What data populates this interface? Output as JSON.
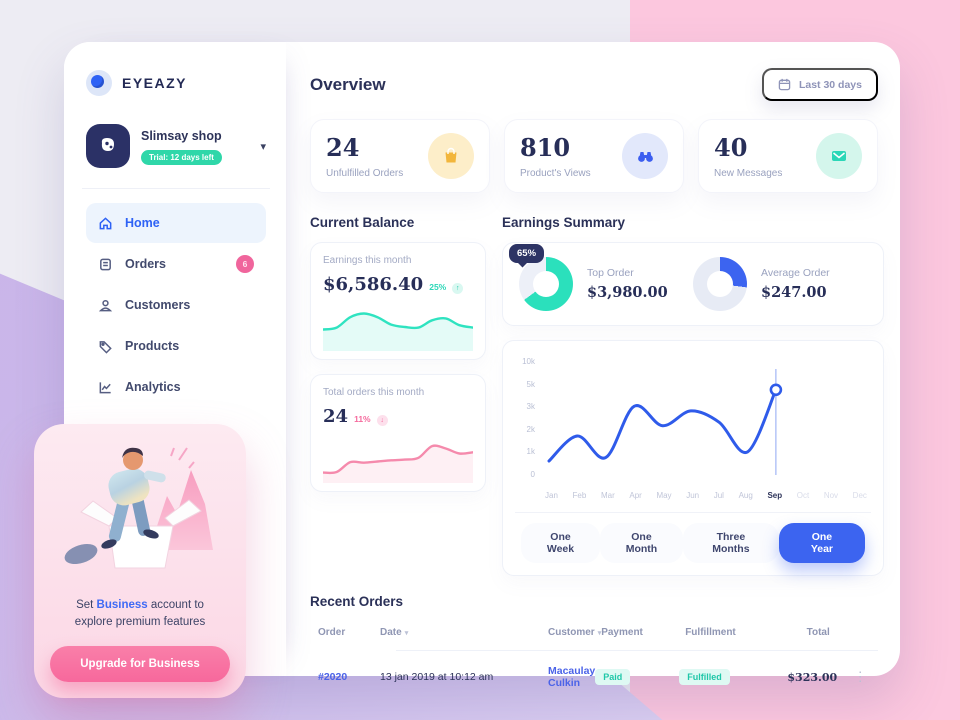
{
  "brand": {
    "name": "EYEAZY"
  },
  "sidebar": {
    "shop_name": "Slimsay shop",
    "shop_badge": "Trial: 12 days left",
    "nav": [
      {
        "label": "Home"
      },
      {
        "label": "Orders",
        "badge": "6"
      },
      {
        "label": "Customers"
      },
      {
        "label": "Products"
      },
      {
        "label": "Analytics"
      }
    ]
  },
  "promo": {
    "line1_prefix": "Set ",
    "line1_highlight": "Business",
    "line1_suffix": " account to",
    "line2": "explore premium features",
    "button_label": "Upgrade for Business"
  },
  "header": {
    "title": "Overview",
    "date_range_label": "Last 30 days"
  },
  "stats": [
    {
      "value": "24",
      "label": "Unfulfilled Orders"
    },
    {
      "value": "810",
      "label": "Product's Views"
    },
    {
      "value": "40",
      "label": "New Messages"
    }
  ],
  "current_balance": {
    "section_title": "Current Balance",
    "earnings_label": "Earnings this month",
    "earnings_value": "$6,586.40",
    "earnings_delta": "25%",
    "orders_label": "Total orders this month",
    "orders_value": "24",
    "orders_delta": "11%"
  },
  "earnings_summary": {
    "section_title": "Earnings Summary",
    "donut_badge": "65%",
    "top_order_label": "Top Order",
    "top_order_value": "$3,980.00",
    "average_order_label": "Average Order",
    "average_order_value": "$247.00"
  },
  "range_buttons": [
    {
      "label": "One Week"
    },
    {
      "label": "One Month"
    },
    {
      "label": "Three Months"
    },
    {
      "label": "One Year",
      "active": true
    }
  ],
  "recent_orders": {
    "section_title": "Recent Orders",
    "columns": [
      "Order",
      "Date",
      "Customer",
      "Payment",
      "Fulfillment",
      "Total"
    ],
    "rows": [
      {
        "order": "#2020",
        "date": "13 jan 2019 at 10:12 am",
        "customer": "Macaulay Culkin",
        "payment": "Paid",
        "fulfillment": "Fulfilled",
        "total": "$323.00"
      }
    ]
  },
  "colors": {
    "accent_blue": "#3c64f0",
    "teal": "#2bdcba",
    "pink_accent": "#f56a9d",
    "navy": "#2b3158",
    "yellow": "#f6b73c",
    "bg_pink": "#fcc7de",
    "bg_purple": "#c9b4e9"
  },
  "chart_data": [
    {
      "type": "line",
      "title": "Earnings by month (One Year view)",
      "x_labels": [
        "Jan",
        "Feb",
        "Mar",
        "Apr",
        "May",
        "Jun",
        "Jul",
        "Aug",
        "Sep",
        "Oct",
        "Nov",
        "Dec"
      ],
      "y_ticks": [
        "10k",
        "5k",
        "3k",
        "2k",
        "1k",
        "0"
      ],
      "series": [
        {
          "name": "Earnings",
          "values": [
            700,
            1800,
            850,
            3200,
            2250,
            2900,
            2400,
            1100,
            4650
          ]
        }
      ],
      "highlight_month": "Sep",
      "highlight_value": 4650,
      "grid": false,
      "legend": false
    },
    {
      "type": "area",
      "name": "earnings-sparkline",
      "color": "#2fe3c0",
      "values": [
        30,
        33,
        50,
        56,
        50,
        38,
        34,
        33,
        45,
        48,
        37,
        33
      ]
    },
    {
      "type": "area",
      "name": "orders-sparkline",
      "color": "#f58aac",
      "values": [
        12,
        13,
        29,
        28,
        30,
        32,
        33,
        36,
        55,
        51,
        43,
        45
      ]
    },
    {
      "type": "donut",
      "name": "top-order-donut",
      "percent": 65,
      "color": "#2be0bc"
    },
    {
      "type": "donut",
      "name": "average-order-donut",
      "percent": 27,
      "color": "#3c64f0"
    }
  ]
}
